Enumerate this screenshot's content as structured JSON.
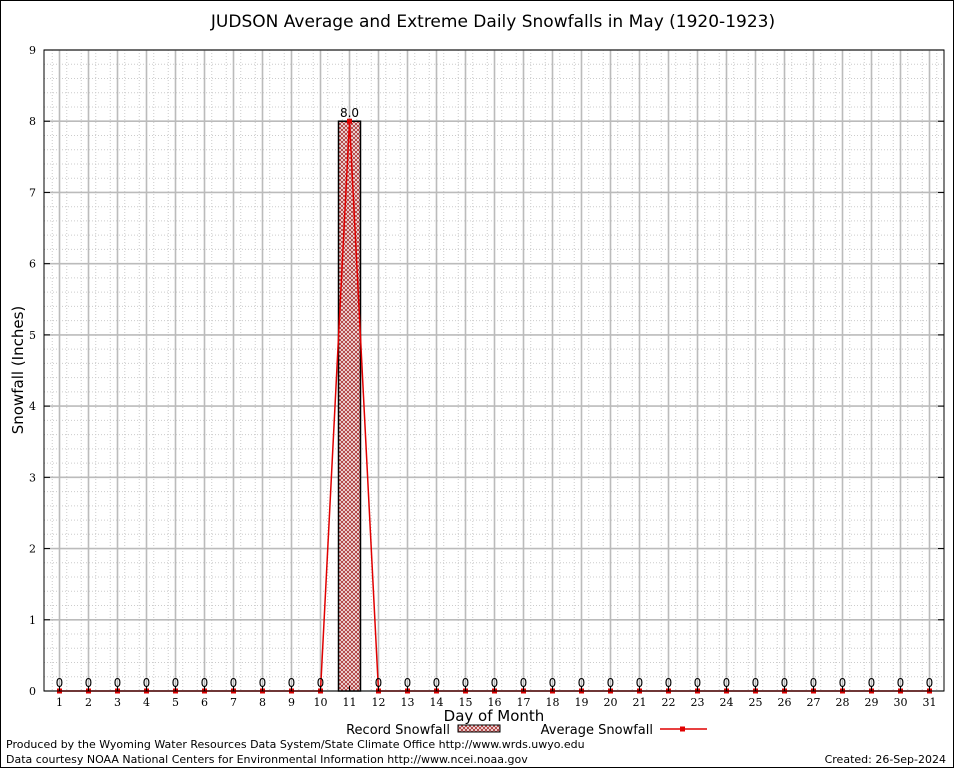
{
  "chart_data": {
    "type": "bar",
    "title": "JUDSON Average and Extreme Daily Snowfalls in May (1920-1923)",
    "xlabel": "Day of Month",
    "ylabel": "Snowfall (Inches)",
    "ylim": [
      0,
      9
    ],
    "yticks": [
      0,
      1,
      2,
      3,
      4,
      5,
      6,
      7,
      8,
      9
    ],
    "categories": [
      "1",
      "2",
      "3",
      "4",
      "5",
      "6",
      "7",
      "8",
      "9",
      "10",
      "11",
      "12",
      "13",
      "14",
      "15",
      "16",
      "17",
      "18",
      "19",
      "20",
      "21",
      "22",
      "23",
      "24",
      "25",
      "26",
      "27",
      "28",
      "29",
      "30",
      "31"
    ],
    "series": [
      {
        "name": "Record Snowfall",
        "kind": "bar",
        "values": [
          0,
          0,
          0,
          0,
          0,
          0,
          0,
          0,
          0,
          0,
          8.0,
          0,
          0,
          0,
          0,
          0,
          0,
          0,
          0,
          0,
          0,
          0,
          0,
          0,
          0,
          0,
          0,
          0,
          0,
          0,
          0
        ],
        "labels": [
          "0",
          "0",
          "0",
          "0",
          "0",
          "0",
          "0",
          "0",
          "0",
          "0",
          "8.0",
          "0",
          "0",
          "0",
          "0",
          "0",
          "0",
          "0",
          "0",
          "0",
          "0",
          "0",
          "0",
          "0",
          "0",
          "0",
          "0",
          "0",
          "0",
          "0",
          "0"
        ]
      },
      {
        "name": "Average Snowfall",
        "kind": "line",
        "values": [
          0,
          0,
          0,
          0,
          0,
          0,
          0,
          0,
          0,
          0,
          8.0,
          0,
          0,
          0,
          0,
          0,
          0,
          0,
          0,
          0,
          0,
          0,
          0,
          0,
          0,
          0,
          0,
          0,
          0,
          0,
          0
        ]
      }
    ],
    "grid": true,
    "legend_position": "bottom",
    "colors": {
      "line": "#e00000",
      "bar_fill": "#c86464",
      "bar_edge": "#000000",
      "grid_major": "#bbbbbb",
      "grid_minor": "#cccccc"
    }
  },
  "footer": {
    "left_line1": "Produced by the Wyoming Water Resources Data System/State Climate Office http://www.wrds.uwyo.edu",
    "left_line2": "Data courtesy NOAA National Centers for Environmental Information http://www.ncei.noaa.gov",
    "right": "Created:  26-Sep-2024"
  }
}
